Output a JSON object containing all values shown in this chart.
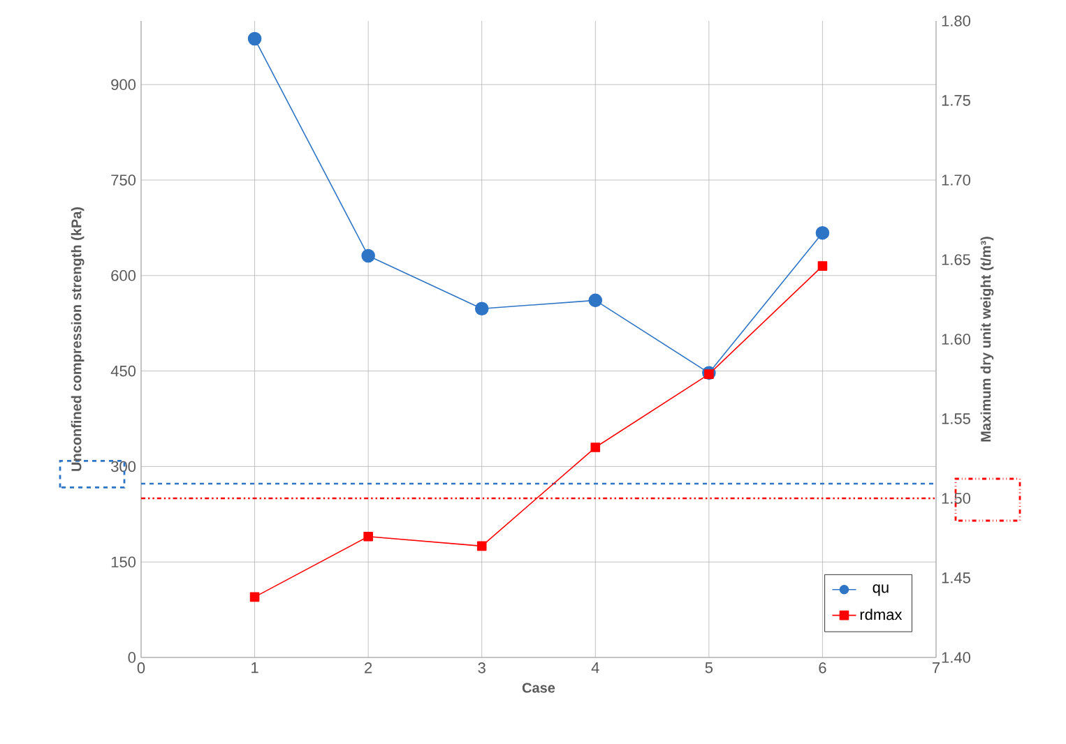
{
  "chart_data": {
    "type": "line",
    "xlabel": "Case",
    "ylabel": "Unconfined compression strength (kPa)",
    "y2label": "Maximum dry unit weight (t/m³)",
    "x": [
      1,
      2,
      3,
      4,
      5,
      6
    ],
    "series": [
      {
        "name": "qu",
        "color": "#2e75c6",
        "marker": "circle",
        "values": [
          972,
          631,
          548,
          561,
          447,
          667
        ]
      },
      {
        "name": "rdmax",
        "color": "#ff0000",
        "marker": "square",
        "axis": "y2",
        "values": [
          1.438,
          1.476,
          1.47,
          1.532,
          1.578,
          1.646
        ]
      }
    ],
    "xlim": [
      0,
      7
    ],
    "xticks": [
      0,
      1,
      2,
      3,
      4,
      5,
      6,
      7
    ],
    "ylim": [
      0,
      1000
    ],
    "yticks": [
      0,
      150,
      300,
      450,
      600,
      750,
      900
    ],
    "y2lim": [
      1.4,
      1.8
    ],
    "y2ticks": [
      {
        "value": 1.4,
        "label": "1.40"
      },
      1.45,
      {
        "value": 1.5,
        "label": "1.50"
      },
      1.55,
      {
        "value": 1.6,
        "label": "1.60"
      },
      1.65,
      {
        "value": 1.7,
        "label": "1.70"
      },
      1.75,
      {
        "value": 1.8,
        "label": "1.80"
      }
    ],
    "ref_lines": [
      {
        "axis": "y",
        "value": 273,
        "color": "#2e75c6",
        "line_style": "dashed"
      },
      {
        "axis": "y2",
        "value": 1.5,
        "color": "#ff0000",
        "line_style": "dashdot"
      }
    ],
    "grid": true,
    "legend": "bottom right"
  }
}
